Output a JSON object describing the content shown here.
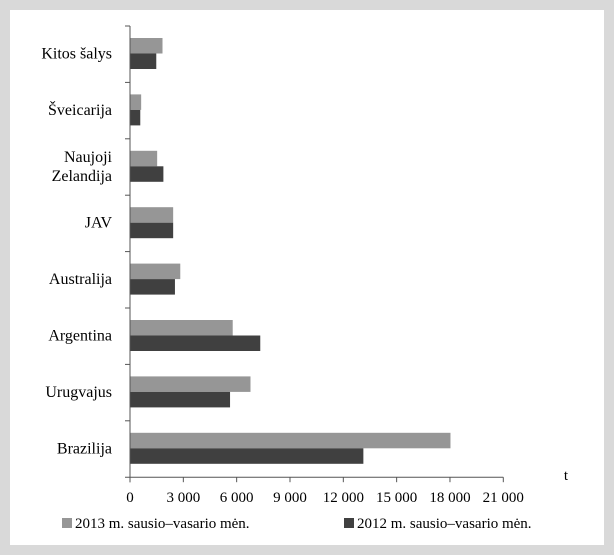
{
  "chart_data": {
    "type": "bar",
    "orientation": "horizontal",
    "categories": [
      [
        "Kitos šalys"
      ],
      [
        "Šveicarija"
      ],
      [
        "Naujoji",
        "Zelandija"
      ],
      [
        "JAV"
      ],
      [
        "Australija"
      ],
      [
        "Argentina"
      ],
      [
        "Urugvajus"
      ],
      [
        "Brazilija"
      ]
    ],
    "series": [
      {
        "name": "2013 m. sausio–vasario mėn.",
        "color": "#969696",
        "values": [
          1800,
          600,
          1500,
          2400,
          2800,
          5750,
          6750,
          18000
        ]
      },
      {
        "name": "2012 m. sausio–vasario mėn.",
        "color": "#404040",
        "values": [
          1450,
          550,
          1850,
          2400,
          2500,
          7300,
          5600,
          13100
        ]
      }
    ],
    "xlabel": "t",
    "xlim": [
      0,
      21000
    ],
    "xticks": [
      "0",
      "3 000",
      "6 000",
      "9 000",
      "12 000",
      "15 000",
      "18 000",
      "21 000"
    ],
    "grid": false,
    "legend_position": "bottom"
  }
}
